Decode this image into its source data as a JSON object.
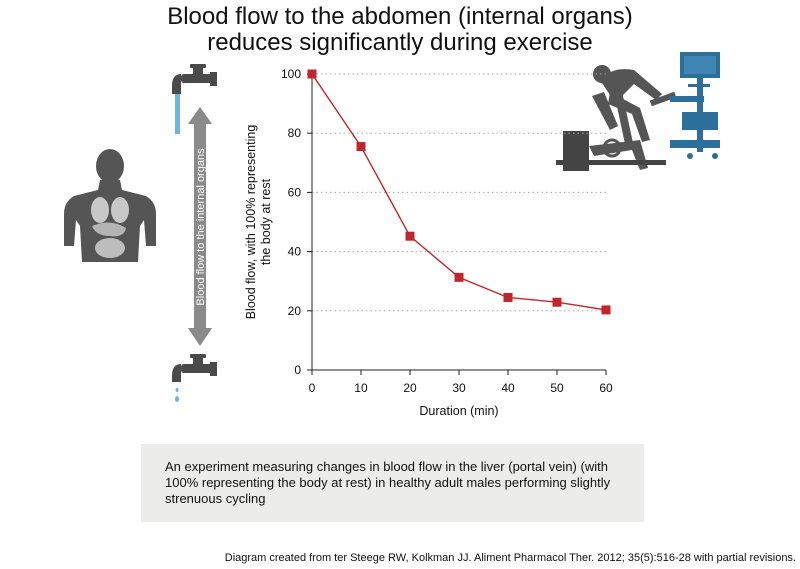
{
  "title_lines": [
    "Blood flow to the abdomen (internal organs)",
    "reduces significantly during exercise"
  ],
  "arrow_label": "Blood flow to the internal organs",
  "caption": "An experiment measuring changes in blood flow in the liver (portal vein) (with 100% representing the body at rest) in healthy adult males performing slightly strenuous cycling",
  "source": "Diagram created from ter Steege RW, Kolkman JJ. Aliment Pharmacol Ther. 2012; 35(5):516-28 with partial revisions.",
  "colors": {
    "series": "#c0272d",
    "faucet": "#4a4a4a",
    "water": "#6cb4e4",
    "arrow": "#8a8a8a",
    "figure": "#555555",
    "equipment": "#2b6f9a",
    "caption_bg": "#ececea"
  },
  "icons": [
    "faucet-open-icon",
    "faucet-dripping-icon",
    "human-torso-organs-icon",
    "exercise-bike-rider-icon",
    "monitor-cart-icon"
  ],
  "chart_data": {
    "type": "line",
    "title": "",
    "xlabel": "Duration (min)",
    "ylabel_lines": [
      "Blood flow, with 100% representing",
      "the body at rest"
    ],
    "x": [
      0,
      10,
      20,
      30,
      40,
      50,
      60
    ],
    "series": [
      {
        "values": [
          100,
          75.5,
          45.2,
          31.3,
          24.5,
          22.9,
          20.3
        ]
      }
    ],
    "xlim": [
      0,
      60
    ],
    "ylim": [
      0,
      100
    ],
    "xticks": [
      0,
      10,
      20,
      30,
      40,
      50,
      60
    ],
    "yticks": [
      0,
      20,
      40,
      60,
      80,
      100
    ],
    "grid": "horizontal-dotted",
    "marker": "square"
  }
}
